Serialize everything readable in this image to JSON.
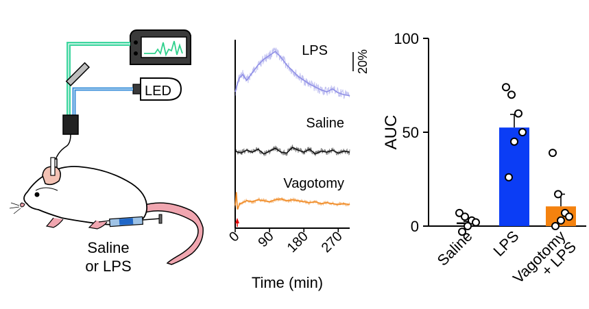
{
  "schematic": {
    "led_label": "LED",
    "injection_label_line1": "Saline",
    "injection_label_line2": "or LPS",
    "fiber_color": "#3fd6a0",
    "excitation_color": "#3a8fd9"
  },
  "chart_data": [
    {
      "type": "line",
      "panel": "photometry-traces",
      "x_tick_labels": [
        "0",
        "90",
        "180",
        "270"
      ],
      "x_ticks": [
        0,
        90,
        180,
        270
      ],
      "xlim": [
        0,
        300
      ],
      "xlabel": "Time (min)",
      "scale_bar_label": "20%",
      "injection_marker_x": 2,
      "series": [
        {
          "name": "LPS",
          "color": "#8f8fe6",
          "x": [
            0,
            10,
            20,
            30,
            45,
            60,
            75,
            90,
            105,
            120,
            135,
            150,
            165,
            180,
            195,
            210,
            225,
            240,
            255,
            270,
            285,
            300
          ],
          "values": [
            10,
            24,
            28,
            22,
            30,
            38,
            44,
            48,
            52,
            46,
            38,
            32,
            26,
            22,
            18,
            15,
            12,
            10,
            13,
            9,
            7,
            6
          ]
        },
        {
          "name": "Saline",
          "color": "#111111",
          "x": [
            0,
            15,
            30,
            45,
            60,
            75,
            90,
            105,
            120,
            135,
            150,
            165,
            180,
            195,
            210,
            225,
            240,
            255,
            270,
            285,
            300
          ],
          "values": [
            1,
            -1,
            2,
            0,
            3,
            -2,
            1,
            4,
            0,
            -1,
            5,
            2,
            0,
            3,
            -2,
            1,
            0,
            2,
            -1,
            1,
            0
          ]
        },
        {
          "name": "Vagotomy",
          "color": "#f08a24",
          "x": [
            0,
            3,
            6,
            12,
            20,
            30,
            45,
            60,
            75,
            90,
            105,
            120,
            135,
            150,
            165,
            180,
            195,
            210,
            225,
            240,
            255,
            270,
            285,
            300
          ],
          "values": [
            0,
            14,
            -4,
            2,
            3,
            5,
            4,
            6,
            5,
            4,
            6,
            7,
            5,
            6,
            5,
            4,
            3,
            4,
            2,
            3,
            2,
            1,
            2,
            1
          ]
        }
      ]
    },
    {
      "type": "bar",
      "panel": "auc",
      "categories": [
        "Saline",
        "LPS",
        "Vagotomy\n+ LPS"
      ],
      "category_lines": [
        [
          "Saline"
        ],
        [
          "LPS"
        ],
        [
          "Vagotomy",
          "+ LPS"
        ]
      ],
      "values": [
        1.5,
        52.5,
        10.5
      ],
      "errors": [
        1.0,
        7.0,
        6.5
      ],
      "points": [
        [
          7,
          5,
          3,
          2,
          0,
          -3
        ],
        [
          74,
          70,
          60,
          50,
          45,
          26
        ],
        [
          39,
          17,
          7,
          5,
          3,
          0
        ]
      ],
      "colors": [
        "#ffffff",
        "#0b3df5",
        "#f4820f"
      ],
      "ylabel": "AUC",
      "ylim": [
        0,
        100
      ],
      "y_ticks": [
        0,
        50,
        100
      ],
      "y_tick_labels": [
        "0",
        "50",
        "100"
      ]
    }
  ]
}
